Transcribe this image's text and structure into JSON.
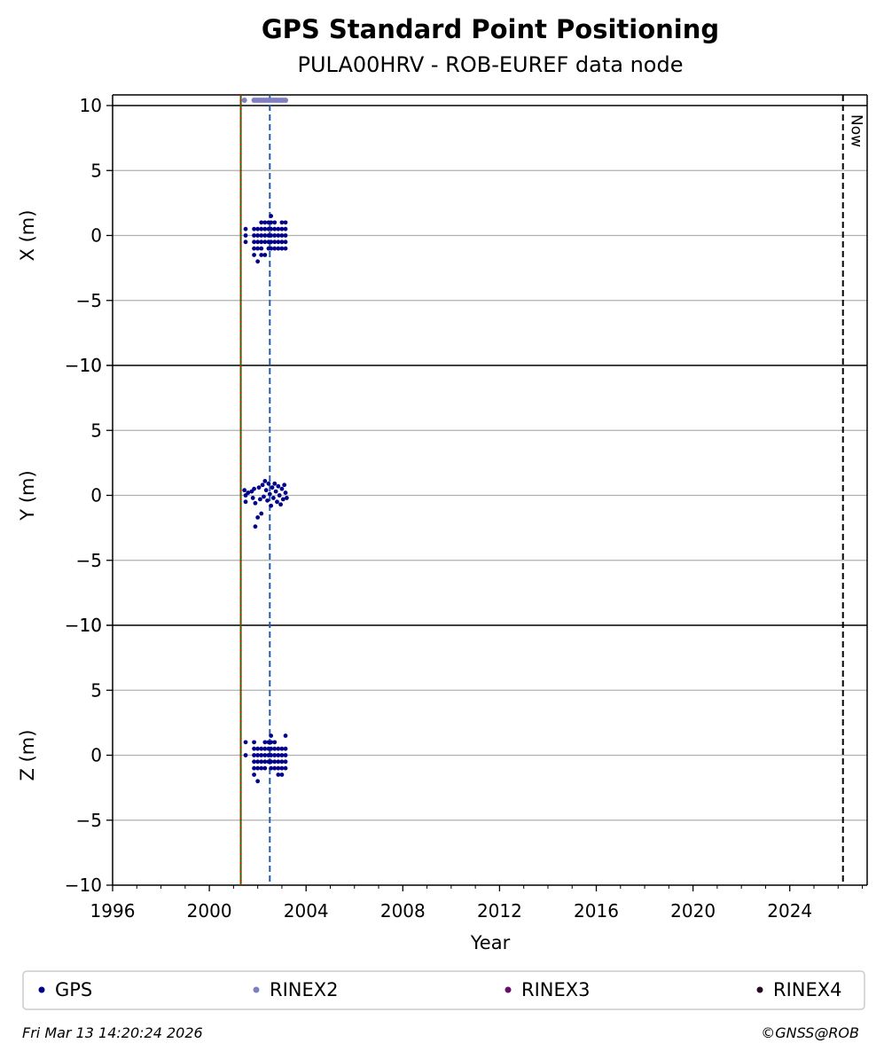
{
  "chart_data": {
    "type": "scatter",
    "title": "GPS Standard Point Positioning",
    "subtitle": "PULA00HRV - ROB-EUREF data node",
    "xlabel": "Year",
    "xlim": [
      1996,
      2027.2
    ],
    "x_ticks": [
      1996,
      2000,
      2004,
      2008,
      2012,
      2016,
      2020,
      2024
    ],
    "grid": "horizontal",
    "panels": [
      {
        "ylabel": "X (m)",
        "ylim": [
          -10,
          10
        ],
        "y_ticks": [
          -10,
          -5,
          0,
          5,
          10
        ],
        "points": [
          [
            2001.5,
            0.5
          ],
          [
            2001.5,
            0.0
          ],
          [
            2001.5,
            -0.5
          ],
          [
            2001.85,
            0.5
          ],
          [
            2001.85,
            0.0
          ],
          [
            2001.85,
            -0.5
          ],
          [
            2001.85,
            -1.0
          ],
          [
            2001.85,
            -1.5
          ],
          [
            2002.0,
            0.5
          ],
          [
            2002.0,
            0.0
          ],
          [
            2002.0,
            -0.5
          ],
          [
            2002.0,
            -1.0
          ],
          [
            2002.0,
            -2.0
          ],
          [
            2002.15,
            1.0
          ],
          [
            2002.15,
            0.5
          ],
          [
            2002.15,
            0.0
          ],
          [
            2002.15,
            -0.5
          ],
          [
            2002.15,
            -1.0
          ],
          [
            2002.15,
            -1.5
          ],
          [
            2002.3,
            1.0
          ],
          [
            2002.3,
            0.5
          ],
          [
            2002.3,
            0.0
          ],
          [
            2002.3,
            -0.5
          ],
          [
            2002.3,
            -1.5
          ],
          [
            2002.45,
            1.0
          ],
          [
            2002.45,
            0.5
          ],
          [
            2002.45,
            0.0
          ],
          [
            2002.45,
            -0.5
          ],
          [
            2002.45,
            -1.0
          ],
          [
            2002.55,
            1.5
          ],
          [
            2002.55,
            1.0
          ],
          [
            2002.55,
            0.5
          ],
          [
            2002.55,
            0.0
          ],
          [
            2002.55,
            -0.5
          ],
          [
            2002.55,
            -1.0
          ],
          [
            2002.7,
            1.0
          ],
          [
            2002.7,
            0.5
          ],
          [
            2002.7,
            0.0
          ],
          [
            2002.7,
            -0.5
          ],
          [
            2002.7,
            -1.0
          ],
          [
            2002.85,
            0.5
          ],
          [
            2002.85,
            0.0
          ],
          [
            2002.85,
            -0.5
          ],
          [
            2002.85,
            -1.0
          ],
          [
            2003.0,
            1.0
          ],
          [
            2003.0,
            0.5
          ],
          [
            2003.0,
            0.0
          ],
          [
            2003.0,
            -0.5
          ],
          [
            2003.0,
            -1.0
          ],
          [
            2003.15,
            1.0
          ],
          [
            2003.15,
            0.5
          ],
          [
            2003.15,
            0.0
          ],
          [
            2003.15,
            -0.5
          ],
          [
            2003.15,
            -1.0
          ]
        ]
      },
      {
        "ylabel": "Y (m)",
        "ylim": [
          -10,
          10
        ],
        "y_ticks": [
          -10,
          -5,
          0,
          5,
          10
        ],
        "points": [
          [
            2001.45,
            0.4
          ],
          [
            2001.5,
            0.0
          ],
          [
            2001.5,
            -0.5
          ],
          [
            2001.6,
            0.2
          ],
          [
            2001.75,
            0.3
          ],
          [
            2001.8,
            -0.2
          ],
          [
            2001.85,
            0.5
          ],
          [
            2001.9,
            -0.6
          ],
          [
            2001.9,
            -2.4
          ],
          [
            2002.0,
            -1.7
          ],
          [
            2002.05,
            0.6
          ],
          [
            2002.1,
            -0.3
          ],
          [
            2002.15,
            -1.4
          ],
          [
            2002.2,
            0.8
          ],
          [
            2002.25,
            -0.1
          ],
          [
            2002.3,
            1.1
          ],
          [
            2002.35,
            0.4
          ],
          [
            2002.4,
            -0.4
          ],
          [
            2002.45,
            0.9
          ],
          [
            2002.5,
            0.1
          ],
          [
            2002.55,
            -0.8
          ],
          [
            2002.6,
            0.6
          ],
          [
            2002.65,
            -0.2
          ],
          [
            2002.7,
            0.9
          ],
          [
            2002.75,
            0.3
          ],
          [
            2002.8,
            -0.5
          ],
          [
            2002.85,
            0.7
          ],
          [
            2002.9,
            0.0
          ],
          [
            2002.95,
            -0.7
          ],
          [
            2003.0,
            0.5
          ],
          [
            2003.05,
            -0.3
          ],
          [
            2003.1,
            0.8
          ],
          [
            2003.15,
            0.2
          ],
          [
            2003.2,
            -0.2
          ]
        ]
      },
      {
        "ylabel": "Z (m)",
        "ylim": [
          -10,
          10
        ],
        "y_ticks": [
          -10,
          -5,
          0,
          5,
          10
        ],
        "points": [
          [
            2001.5,
            1.0
          ],
          [
            2001.5,
            0.0
          ],
          [
            2001.85,
            1.0
          ],
          [
            2001.85,
            0.5
          ],
          [
            2001.85,
            0.0
          ],
          [
            2001.85,
            -0.5
          ],
          [
            2001.85,
            -1.0
          ],
          [
            2001.85,
            -1.5
          ],
          [
            2002.0,
            0.5
          ],
          [
            2002.0,
            0.0
          ],
          [
            2002.0,
            -0.5
          ],
          [
            2002.0,
            -1.0
          ],
          [
            2002.0,
            -2.0
          ],
          [
            2002.15,
            0.5
          ],
          [
            2002.15,
            0.0
          ],
          [
            2002.15,
            -0.5
          ],
          [
            2002.15,
            -1.0
          ],
          [
            2002.3,
            1.0
          ],
          [
            2002.3,
            0.5
          ],
          [
            2002.3,
            0.0
          ],
          [
            2002.3,
            -0.5
          ],
          [
            2002.3,
            -1.0
          ],
          [
            2002.45,
            1.0
          ],
          [
            2002.45,
            0.5
          ],
          [
            2002.45,
            0.0
          ],
          [
            2002.45,
            -0.5
          ],
          [
            2002.55,
            1.5
          ],
          [
            2002.55,
            1.0
          ],
          [
            2002.55,
            0.5
          ],
          [
            2002.55,
            0.0
          ],
          [
            2002.55,
            -0.5
          ],
          [
            2002.55,
            -1.0
          ],
          [
            2002.7,
            1.0
          ],
          [
            2002.7,
            0.5
          ],
          [
            2002.7,
            0.0
          ],
          [
            2002.7,
            -0.5
          ],
          [
            2002.7,
            -1.0
          ],
          [
            2002.85,
            0.5
          ],
          [
            2002.85,
            0.0
          ],
          [
            2002.85,
            -0.5
          ],
          [
            2002.85,
            -1.0
          ],
          [
            2002.85,
            -1.5
          ],
          [
            2003.0,
            0.5
          ],
          [
            2003.0,
            0.0
          ],
          [
            2003.0,
            -0.5
          ],
          [
            2003.0,
            -1.0
          ],
          [
            2003.0,
            -1.5
          ],
          [
            2003.15,
            1.5
          ],
          [
            2003.15,
            0.5
          ],
          [
            2003.15,
            0.0
          ],
          [
            2003.15,
            -0.5
          ],
          [
            2003.15,
            -1.0
          ]
        ]
      }
    ],
    "rinex2_points": [
      2001.45,
      2001.85,
      2001.95,
      2002.05,
      2002.15,
      2002.25,
      2002.35,
      2002.45,
      2002.55,
      2002.65,
      2002.75,
      2002.85,
      2002.95,
      2003.05,
      2003.15
    ],
    "vertical_lines": [
      {
        "x": 2001.3,
        "style": "solid",
        "color": "#008000"
      },
      {
        "x": 2001.3,
        "style": "dotted",
        "color": "#ff0000"
      },
      {
        "x": 2002.5,
        "style": "dashed",
        "color": "#1f5fb0"
      },
      {
        "x": 2026.2,
        "style": "dashed",
        "color": "#000000",
        "label": "Now"
      }
    ],
    "legend": {
      "placement": "bottom",
      "entries": [
        {
          "label": "GPS",
          "color": "#00008b"
        },
        {
          "label": "RINEX2",
          "color": "#8080c0"
        },
        {
          "label": "RINEX3",
          "color": "#6a0d6a"
        },
        {
          "label": "RINEX4",
          "color": "#2a0a20"
        }
      ]
    },
    "colors": {
      "gps": "#00008b",
      "rinex2": "#8080c0",
      "grid": "#b0b0b0"
    }
  },
  "footer": {
    "timestamp": "Fri Mar 13 14:20:24 2026",
    "copyright": "©GNSS@ROB"
  }
}
